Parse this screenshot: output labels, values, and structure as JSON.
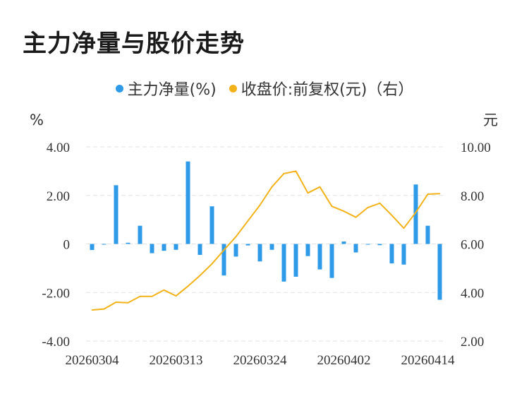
{
  "title": "主力净量与股价走势",
  "legend": {
    "series1": "主力净量(%)",
    "series2": "收盘价:前复权(元)（右）"
  },
  "colors": {
    "bar": "#2f9be8",
    "line": "#f2b31a",
    "grid": "#e3e3e3"
  },
  "chart_data": {
    "type": "bar",
    "title": "主力净量与股价走势",
    "y_left_unit": "%",
    "y_right_unit": "元",
    "ylim_left": [
      -4,
      4
    ],
    "ylim_right": [
      2,
      10
    ],
    "y_left_ticks": [
      "4.00",
      "2.00",
      "0",
      "-2.00",
      "-4.00"
    ],
    "y_right_ticks": [
      "10.00",
      "8.00",
      "6.00",
      "4.00",
      "2.00"
    ],
    "x_tick_labels": [
      "20260304",
      "20260313",
      "20260324",
      "20260402",
      "20260414"
    ],
    "x_tick_indices": [
      0,
      7,
      14,
      21,
      28
    ],
    "grid": true,
    "legend_position": "top-center",
    "series": [
      {
        "name": "主力净量(%)",
        "type": "bar",
        "axis": "left",
        "values": [
          -0.25,
          -0.02,
          2.42,
          0.05,
          0.75,
          -0.38,
          -0.28,
          -0.24,
          3.4,
          -0.45,
          1.55,
          -1.3,
          -0.52,
          -0.06,
          -0.72,
          -0.24,
          -1.55,
          -1.35,
          -0.5,
          -1.05,
          -1.4,
          0.1,
          -0.35,
          -0.02,
          -0.05,
          -0.8,
          -0.85,
          2.45,
          0.75,
          -2.3
        ]
      },
      {
        "name": "收盘价:前复权(元)（右）",
        "type": "line",
        "axis": "right",
        "values": [
          3.28,
          3.32,
          3.6,
          3.58,
          3.84,
          3.84,
          4.1,
          3.86,
          4.26,
          4.7,
          5.18,
          5.75,
          6.3,
          6.95,
          7.6,
          8.35,
          8.9,
          9.0,
          8.1,
          8.35,
          7.55,
          7.35,
          7.1,
          7.5,
          7.68,
          7.18,
          6.65,
          7.3,
          8.05,
          8.07
        ]
      }
    ]
  }
}
